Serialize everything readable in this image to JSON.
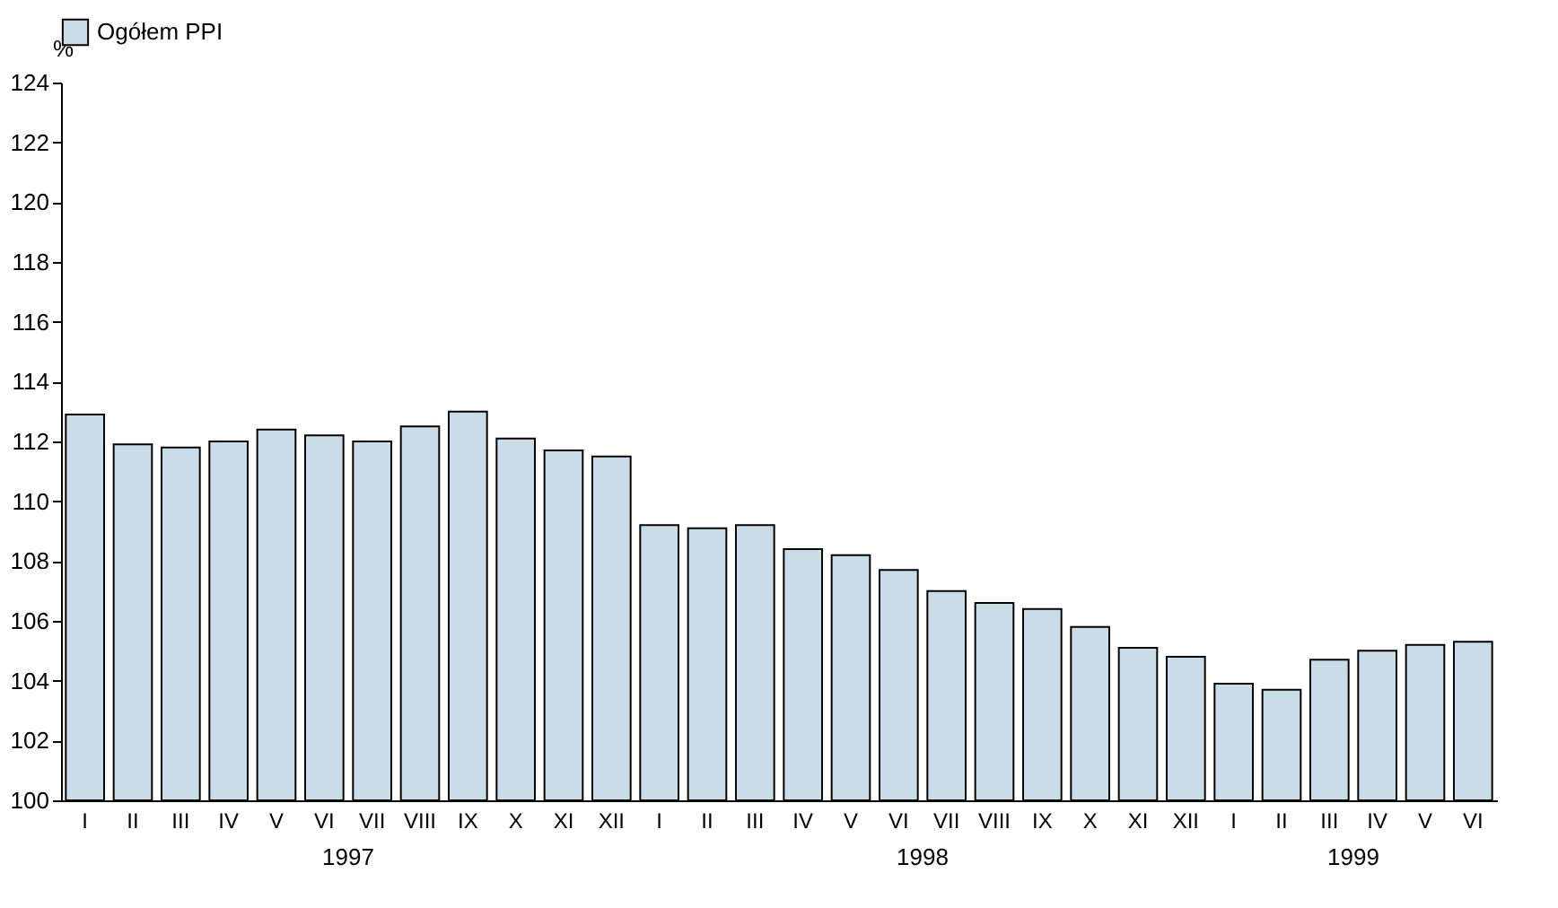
{
  "chart_data": {
    "type": "bar",
    "ylabel": "%",
    "categories": [
      "I",
      "II",
      "III",
      "IV",
      "V",
      "VI",
      "VII",
      "VIII",
      "IX",
      "X",
      "XI",
      "XII",
      "I",
      "II",
      "III",
      "IV",
      "V",
      "VI",
      "VII",
      "VIII",
      "IX",
      "X",
      "XI",
      "XII",
      "I",
      "II",
      "III",
      "IV",
      "V",
      "VI"
    ],
    "series": [
      {
        "name": "Ogółem PPI",
        "color": "#c9dde8",
        "values": [
          112.9,
          111.9,
          111.8,
          112.0,
          112.4,
          112.2,
          112.0,
          112.5,
          113.0,
          112.1,
          111.7,
          111.5,
          109.2,
          109.1,
          109.2,
          108.4,
          108.2,
          107.7,
          107.0,
          106.6,
          106.4,
          105.8,
          105.1,
          104.8,
          103.9,
          103.7,
          104.7,
          105.0,
          105.2,
          105.3
        ]
      }
    ],
    "annotations": [
      "1997",
      "1998",
      "1999"
    ],
    "ylim": [
      100,
      124
    ],
    "yticks": [
      100,
      102,
      104,
      106,
      108,
      110,
      112,
      114,
      116,
      118,
      120,
      122,
      124
    ],
    "grid": false,
    "legend": "top"
  }
}
